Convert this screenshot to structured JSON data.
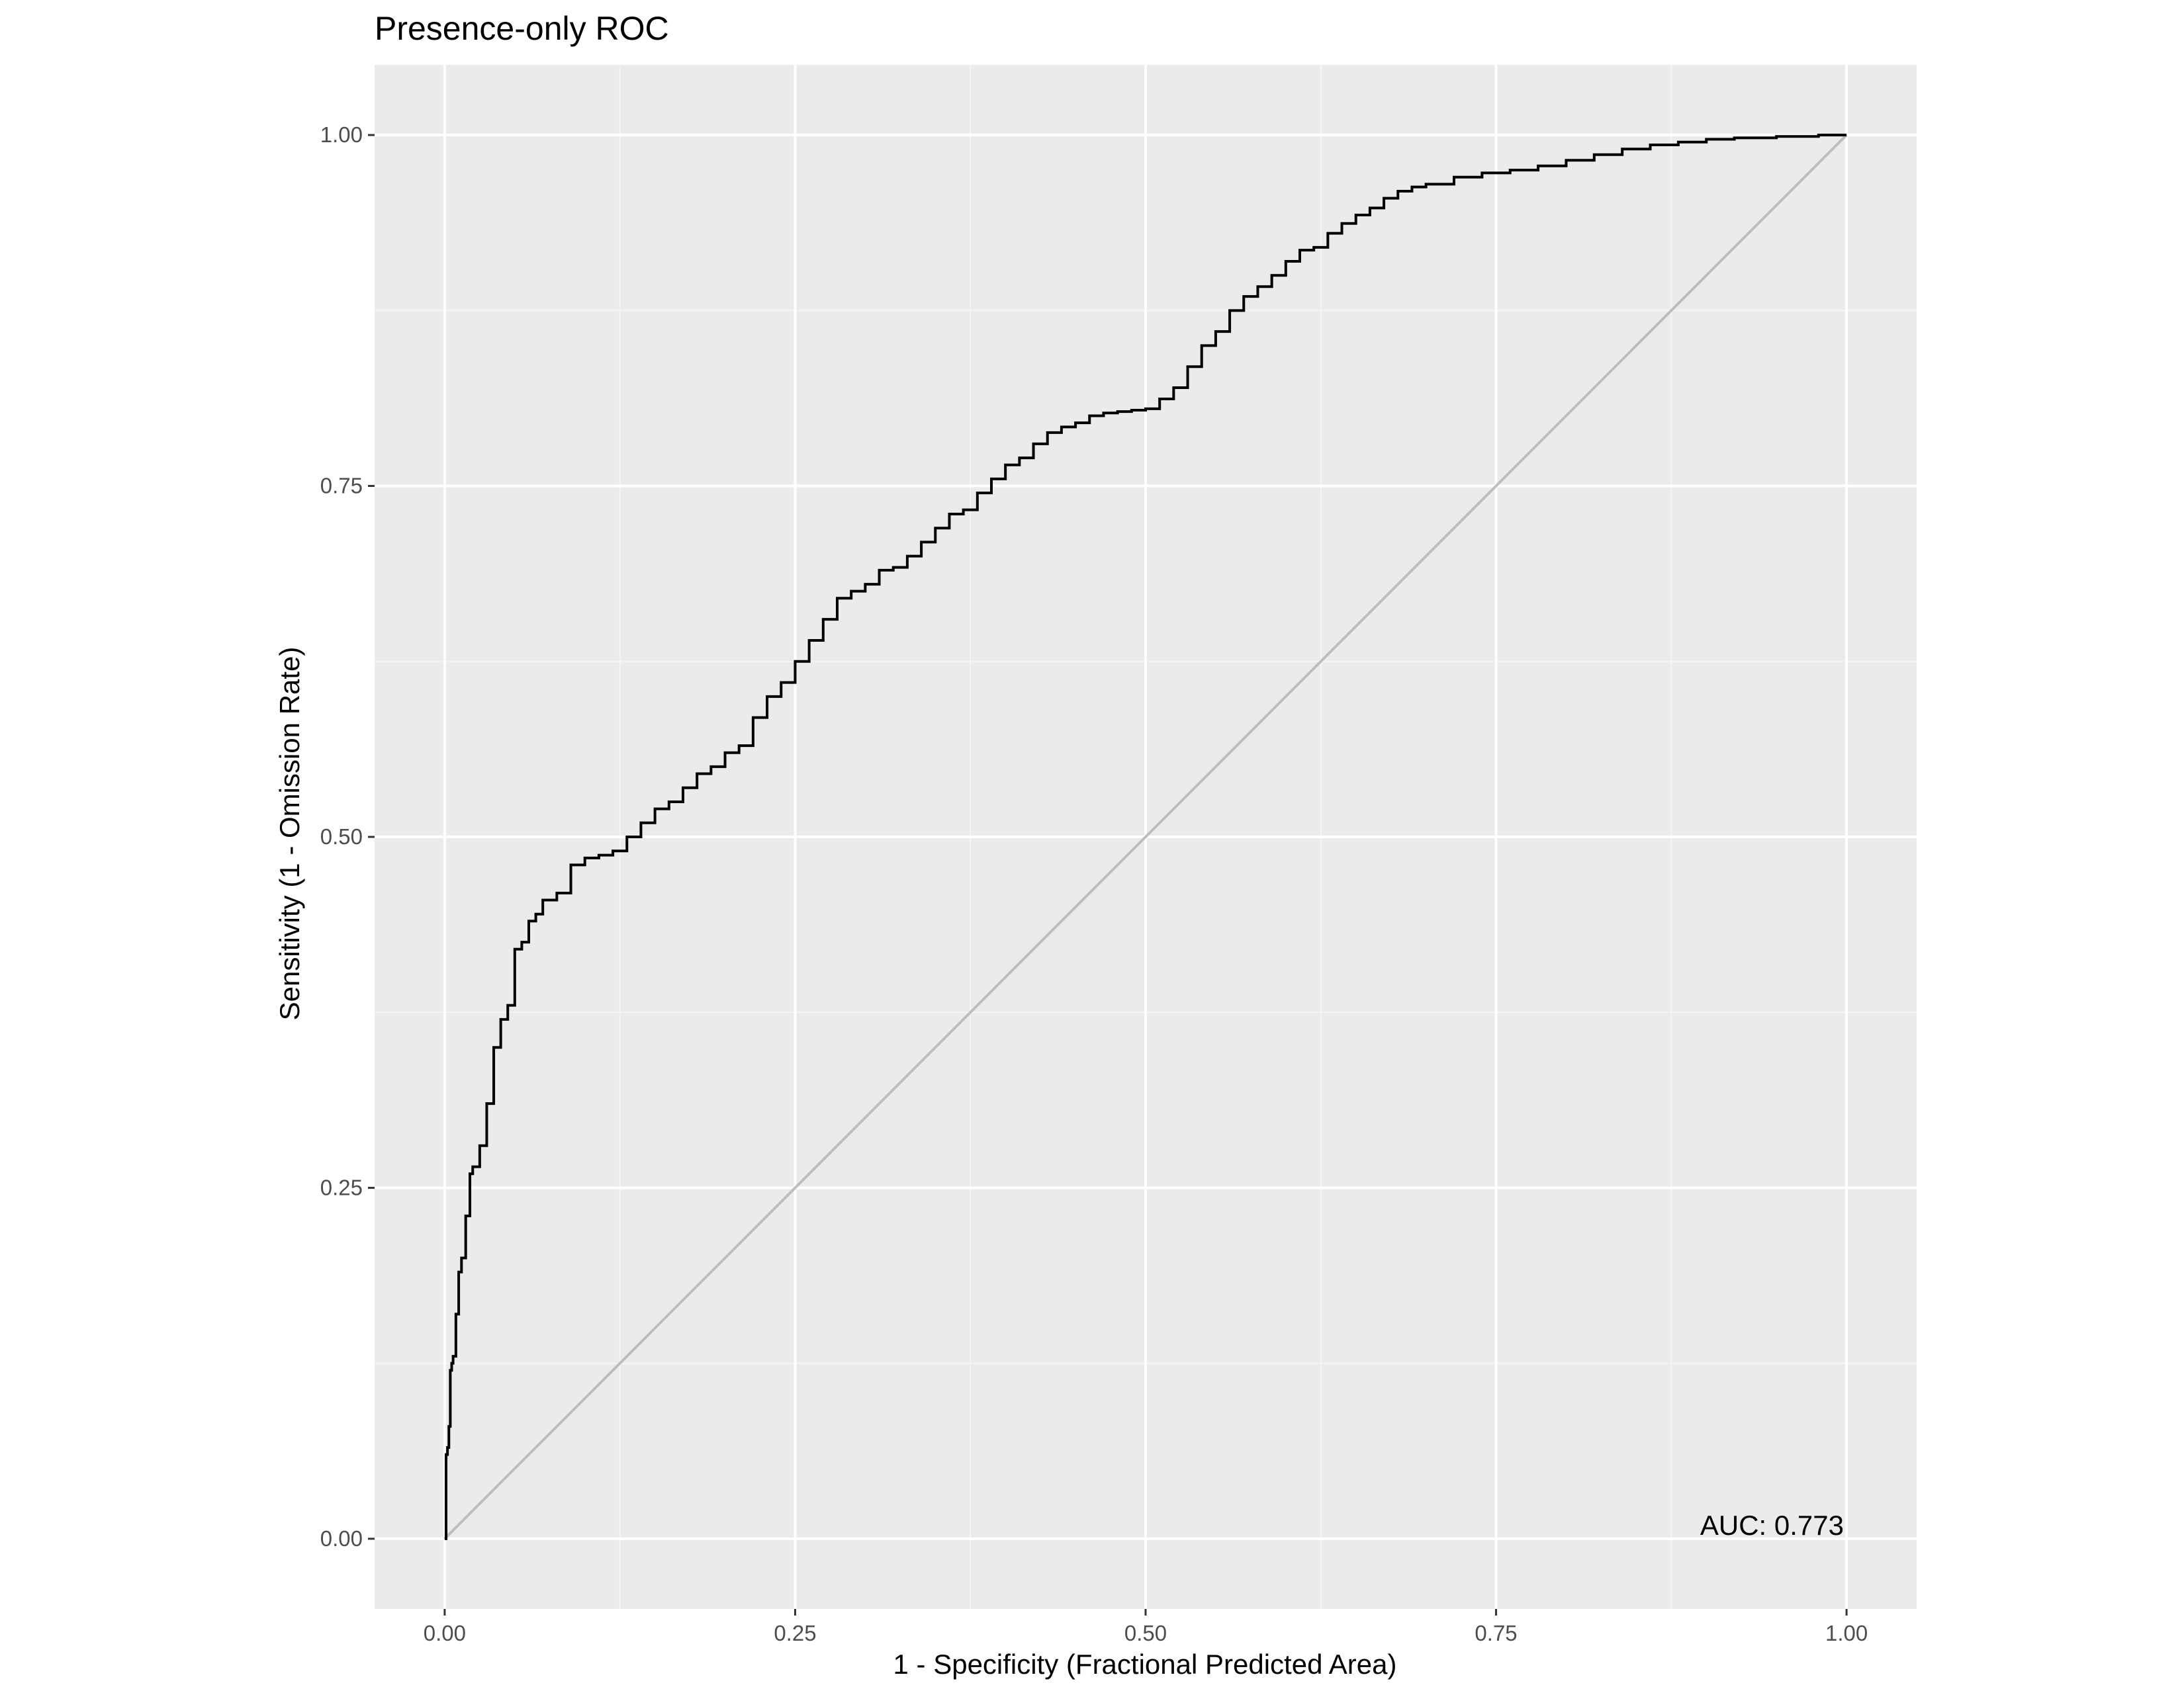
{
  "chart_data": {
    "type": "line",
    "title": "Presence-only ROC",
    "xlabel": "1 - Specificity (Fractional Predicted Area)",
    "ylabel": "Sensitivity (1 - Omission Rate)",
    "xlim": [
      -0.05,
      1.05
    ],
    "ylim": [
      -0.05,
      1.05
    ],
    "x_ticks": [
      0,
      0.25,
      0.5,
      0.75,
      1
    ],
    "x_tick_labels": [
      "0.00",
      "0.25",
      "0.50",
      "0.75",
      "1.00"
    ],
    "y_ticks": [
      0,
      0.25,
      0.5,
      0.75,
      1
    ],
    "y_tick_labels": [
      "0.00",
      "0.25",
      "0.50",
      "0.75",
      "1.00"
    ],
    "grid": true,
    "annotation": "AUC: 0.773",
    "colors": {
      "panel_background": "#ebebeb",
      "grid_major": "#ffffff",
      "grid_minor": "#f5f5f5",
      "roc_line": "#000000",
      "reference_line": "#bebebe",
      "tick_label": "#4d4d4d"
    },
    "series": [
      {
        "x": [
          0.0,
          0.001,
          0.002,
          0.003,
          0.004,
          0.005,
          0.006,
          0.008,
          0.01,
          0.012,
          0.015,
          0.018,
          0.02,
          0.025,
          0.03,
          0.035,
          0.04,
          0.045,
          0.05,
          0.055,
          0.06,
          0.065,
          0.07,
          0.08,
          0.09,
          0.1,
          0.11,
          0.12,
          0.13,
          0.14,
          0.15,
          0.16,
          0.17,
          0.18,
          0.19,
          0.2,
          0.21,
          0.22,
          0.23,
          0.24,
          0.25,
          0.26,
          0.27,
          0.28,
          0.29,
          0.3,
          0.31,
          0.32,
          0.33,
          0.34,
          0.35,
          0.36,
          0.37,
          0.38,
          0.39,
          0.4,
          0.41,
          0.42,
          0.43,
          0.44,
          0.45,
          0.46,
          0.47,
          0.48,
          0.49,
          0.5,
          0.51,
          0.52,
          0.53,
          0.54,
          0.55,
          0.56,
          0.57,
          0.58,
          0.59,
          0.6,
          0.61,
          0.62,
          0.63,
          0.64,
          0.65,
          0.66,
          0.67,
          0.68,
          0.69,
          0.7,
          0.72,
          0.74,
          0.76,
          0.78,
          0.8,
          0.82,
          0.84,
          0.86,
          0.88,
          0.9,
          0.92,
          0.95,
          0.98,
          1.0
        ],
        "y": [
          0.0,
          0.06,
          0.065,
          0.08,
          0.12,
          0.125,
          0.13,
          0.16,
          0.19,
          0.2,
          0.23,
          0.26,
          0.265,
          0.28,
          0.31,
          0.35,
          0.37,
          0.38,
          0.42,
          0.425,
          0.44,
          0.445,
          0.455,
          0.46,
          0.48,
          0.485,
          0.487,
          0.49,
          0.5,
          0.51,
          0.52,
          0.525,
          0.535,
          0.545,
          0.55,
          0.56,
          0.565,
          0.585,
          0.6,
          0.61,
          0.625,
          0.64,
          0.655,
          0.67,
          0.675,
          0.68,
          0.69,
          0.692,
          0.7,
          0.71,
          0.72,
          0.73,
          0.733,
          0.745,
          0.755,
          0.765,
          0.77,
          0.78,
          0.788,
          0.792,
          0.795,
          0.8,
          0.802,
          0.803,
          0.804,
          0.805,
          0.812,
          0.82,
          0.835,
          0.85,
          0.86,
          0.875,
          0.885,
          0.892,
          0.9,
          0.91,
          0.918,
          0.92,
          0.93,
          0.937,
          0.943,
          0.948,
          0.955,
          0.96,
          0.963,
          0.965,
          0.97,
          0.973,
          0.975,
          0.978,
          0.982,
          0.986,
          0.99,
          0.993,
          0.995,
          0.997,
          0.998,
          0.999,
          1.0,
          1.0
        ]
      }
    ]
  }
}
